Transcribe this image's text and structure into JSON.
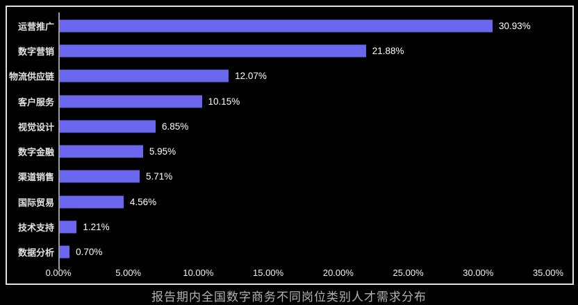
{
  "chart_data": {
    "type": "bar",
    "orientation": "horizontal",
    "title": "报告期内全国数字商务不同岗位类别人才需求分布",
    "categories": [
      "运营推广",
      "数字营销",
      "物流供应链",
      "客户服务",
      "视觉设计",
      "数字金融",
      "渠道销售",
      "国际贸易",
      "技术支持",
      "数据分析"
    ],
    "values": [
      30.93,
      21.88,
      12.07,
      10.15,
      6.85,
      5.95,
      5.71,
      4.56,
      1.21,
      0.7
    ],
    "value_labels": [
      "30.93%",
      "21.88%",
      "12.07%",
      "10.15%",
      "6.85%",
      "5.95%",
      "5.71%",
      "4.56%",
      "1.21%",
      "0.70%"
    ],
    "xlabel": "",
    "ylabel": "",
    "xlim": [
      0,
      35
    ],
    "xticks": [
      "0.00%",
      "5.00%",
      "10.00%",
      "15.00%",
      "20.00%",
      "25.00%",
      "30.00%",
      "35.00%"
    ],
    "xtick_values": [
      0,
      5,
      10,
      15,
      20,
      25,
      30,
      35
    ],
    "grid": false,
    "legend": false,
    "bar_color": "#6b66ee",
    "background_color": "#000000",
    "frame_color": "#e2e2e2"
  }
}
